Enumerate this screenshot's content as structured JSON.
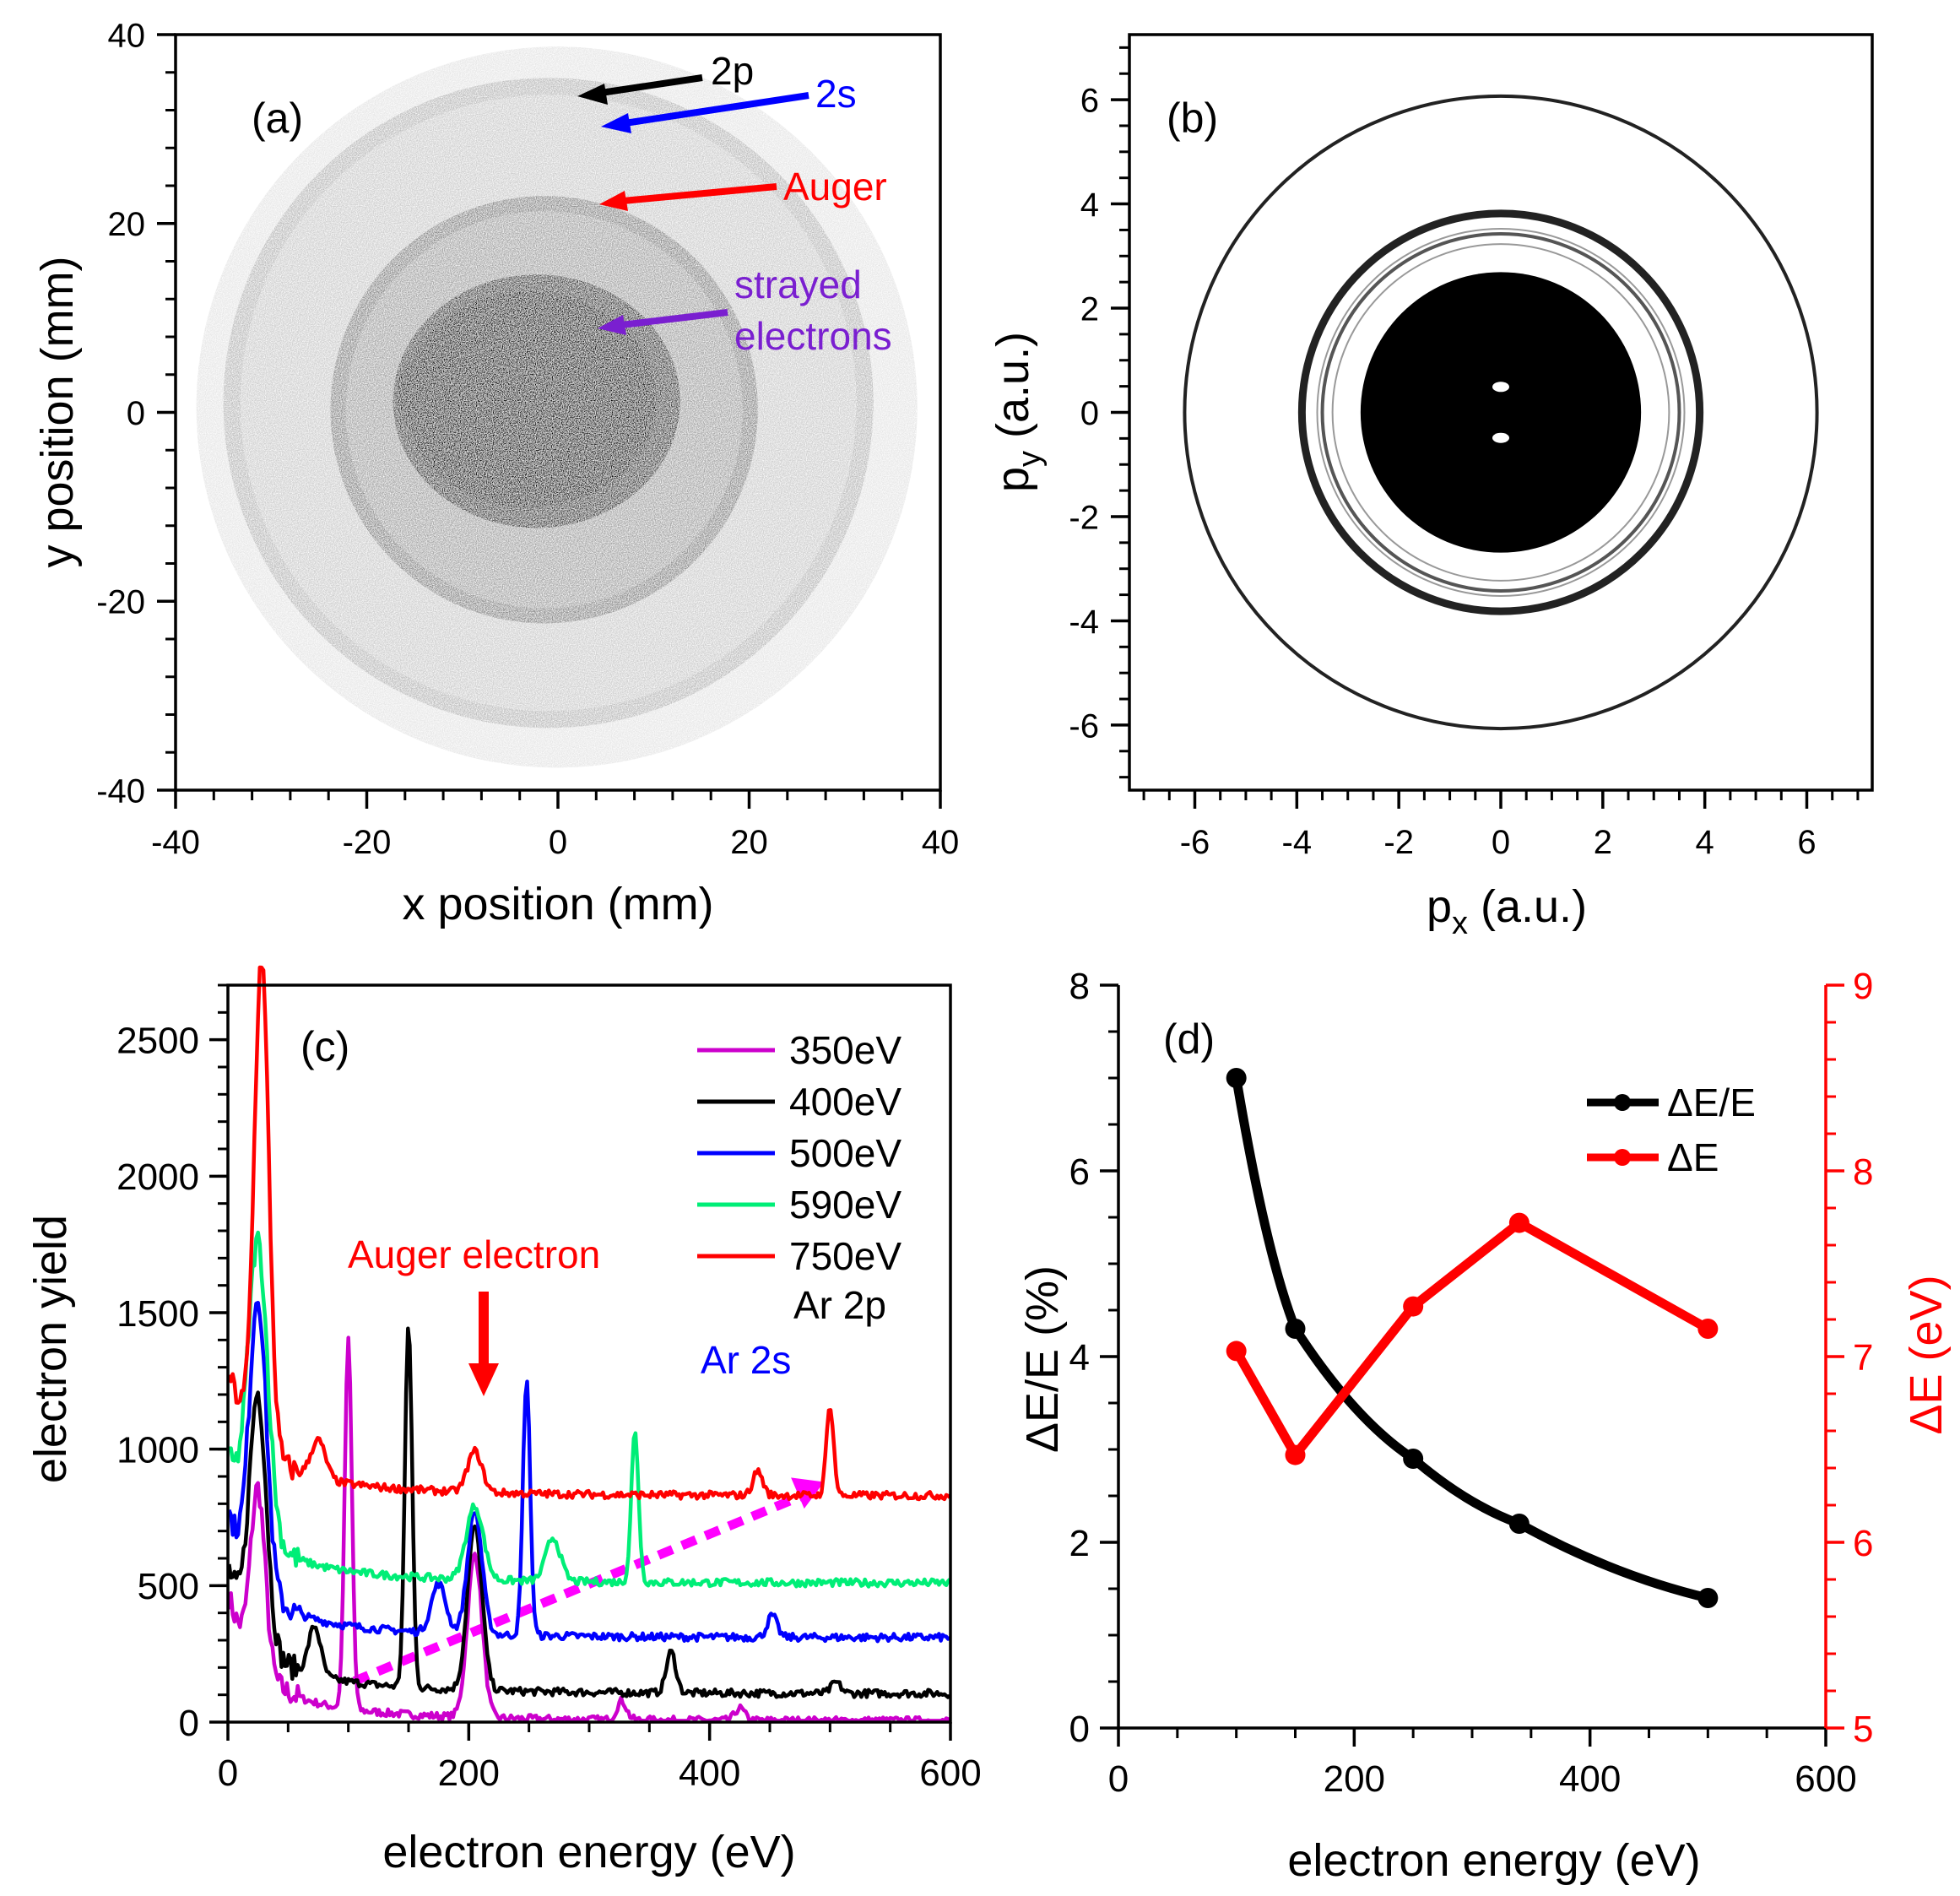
{
  "colors": {
    "axis": "#000000",
    "red": "#ff0000",
    "blue": "#0000ff",
    "green": "#00ee77",
    "magenta": "#cc00cc",
    "purple": "#7a1fd0",
    "dashed": "#ff00ff"
  },
  "chart_data": [
    {
      "panel": "(a)",
      "type": "heatmap",
      "xlabel": "x position (mm)",
      "ylabel": "y position (mm)",
      "xlim": [
        -40,
        40
      ],
      "ylim": [
        -40,
        40
      ],
      "xticks": [
        "-40",
        "-20",
        "0",
        "20",
        "40"
      ],
      "yticks": [
        "-40",
        "-20",
        "0",
        "20",
        "40"
      ],
      "rings_mm": [
        {
          "name": "2p",
          "radius": 37
        },
        {
          "name": "2s",
          "radius": 34
        },
        {
          "name": "Auger",
          "radius": 22
        }
      ],
      "center_mm": [
        -1,
        1
      ],
      "annotations": [
        {
          "text": "2p",
          "color": "#000000"
        },
        {
          "text": "2s",
          "color": "#0000ff"
        },
        {
          "text": "Auger",
          "color": "#ff0000"
        },
        {
          "text": "strayed",
          "color": "#7a1fd0"
        },
        {
          "text": "electrons",
          "color": "#7a1fd0"
        }
      ]
    },
    {
      "panel": "(b)",
      "type": "heatmap",
      "xlabel": "a.u.",
      "ylabel": "a.u.",
      "xlabel_symbol": "p",
      "xlabel_sub": "x",
      "ylabel_symbol": "p",
      "ylabel_sub": "y",
      "xlim": [
        -7.2,
        7.2
      ],
      "ylim": [
        -7.2,
        7.2
      ],
      "xticks": [
        "-6",
        "-4",
        "-2",
        "0",
        "2",
        "4",
        "6"
      ],
      "yticks": [
        "-6",
        "-4",
        "-2",
        "0",
        "2",
        "4",
        "6"
      ],
      "rings_au": [
        {
          "radius": 6.2,
          "weight": "strong"
        },
        {
          "radius": 3.9,
          "weight": "strong"
        },
        {
          "radius": 3.6,
          "weight": "faint"
        },
        {
          "radius": 3.3,
          "weight": "faint"
        }
      ],
      "core_radius_au": 2.75
    },
    {
      "panel": "(c)",
      "type": "line",
      "xlabel": "electron energy (eV)",
      "ylabel": "electron yield",
      "xlim": [
        0,
        600
      ],
      "ylim": [
        0,
        2700
      ],
      "xticks": [
        "0",
        "200",
        "400",
        "600"
      ],
      "yticks": [
        "0",
        "500",
        "1000",
        "1500",
        "2000",
        "2500"
      ],
      "series": [
        {
          "name": "350eV",
          "color": "#cc00cc",
          "baseline": 5,
          "peaks": [
            [
              25,
              650,
              6
            ],
            [
              100,
              1350,
              3
            ],
            [
              205,
              600,
              6
            ],
            [
              327,
              70,
              4
            ],
            [
              425,
              45,
              4
            ]
          ]
        },
        {
          "name": "400eV",
          "color": "#000000",
          "baseline": 105,
          "peaks": [
            [
              25,
              900,
              7
            ],
            [
              72,
              180,
              5
            ],
            [
              150,
              1330,
              3
            ],
            [
              205,
              600,
              6
            ],
            [
              368,
              150,
              4
            ],
            [
              505,
              40,
              4
            ]
          ]
        },
        {
          "name": "500eV",
          "color": "#0000ff",
          "baseline": 310,
          "peaks": [
            [
              25,
              1050,
              7
            ],
            [
              175,
              180,
              6
            ],
            [
              205,
              450,
              6
            ],
            [
              248,
              940,
              3
            ],
            [
              452,
              80,
              4
            ]
          ]
        },
        {
          "name": "590eV",
          "color": "#00ee77",
          "baseline": 510,
          "peaks": [
            [
              25,
              1050,
              8
            ],
            [
              205,
              270,
              7
            ],
            [
              270,
              160,
              6
            ],
            [
              338,
              550,
              3
            ]
          ]
        },
        {
          "name": "750eV",
          "color": "#ff0000",
          "baseline": 830,
          "peaks": [
            [
              28,
              1780,
              6
            ],
            [
              75,
              140,
              6
            ],
            [
              205,
              150,
              6
            ],
            [
              440,
              90,
              4
            ],
            [
              500,
              330,
              3
            ]
          ]
        }
      ],
      "annotations": [
        {
          "text": "Auger electron",
          "color": "#ff0000"
        },
        {
          "text": "Ar 2s",
          "color": "#0000ff"
        },
        {
          "text": "Ar 2p",
          "color": "#000000"
        }
      ],
      "trend_arrow": {
        "from": [
          105,
          150
        ],
        "to": [
          495,
          880
        ]
      }
    },
    {
      "panel": "(d)",
      "type": "line",
      "xlabel": "electron energy (eV)",
      "ylabel": "ΔE/E (%)",
      "ylabel_right": "ΔE (eV)",
      "xlim": [
        0,
        600
      ],
      "ylim": [
        0,
        8
      ],
      "ylim_right": [
        5,
        9
      ],
      "xticks": [
        "0",
        "200",
        "400",
        "600"
      ],
      "yticks": [
        "0",
        "2",
        "4",
        "6",
        "8"
      ],
      "yticks_right": [
        "5",
        "6",
        "7",
        "8",
        "9"
      ],
      "x": [
        100,
        150,
        250,
        340,
        500
      ],
      "series": [
        {
          "name": "ΔE/E",
          "color": "#000000",
          "axis": "left",
          "values": [
            7.0,
            4.3,
            2.9,
            2.2,
            1.4
          ]
        },
        {
          "name": "ΔE",
          "color": "#ff0000",
          "axis": "right",
          "values": [
            7.03,
            6.47,
            7.27,
            7.72,
            7.15
          ]
        }
      ]
    }
  ]
}
